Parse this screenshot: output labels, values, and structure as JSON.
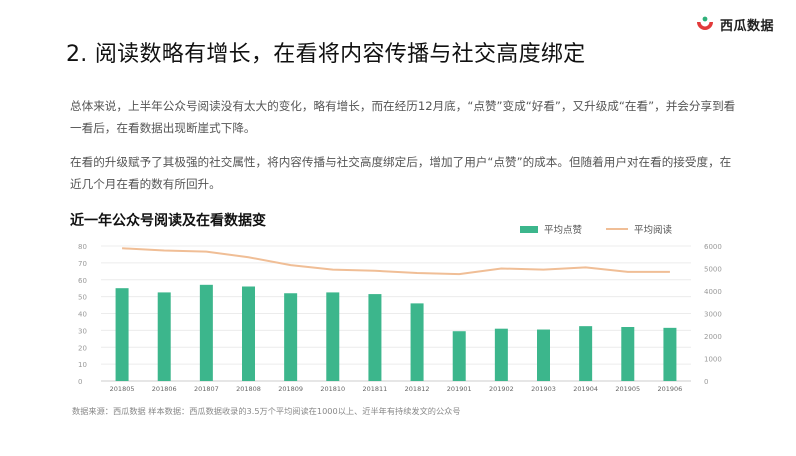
{
  "brand": {
    "name": "西瓜数据"
  },
  "title": "2. 阅读数略有增长，在看将内容传播与社交高度绑定",
  "paragraphs": [
    "总体来说，上半年公众号阅读没有太大的变化，略有增长，而在经历12月底，“点赞”变成“好看”，又升级成“在看”，并会分享到看一看后，在看数据出现断崖式下降。",
    "在看的升级赋予了其极强的社交属性，将内容传播与社交高度绑定后，增加了用户“点赞”的成本。但随着用户对在看的接受度，在近几个月在看的数有所回升。"
  ],
  "source": "数据来源：西瓜数据  样本数据：西瓜数据收录的3.5万个平均阅读在1000以上、近半年有持续发文的公众号",
  "colors": {
    "bar": "#3cb68c",
    "line": "#f0be96",
    "grid": "#ececec",
    "axis": "#999999"
  },
  "chart_data": {
    "type": "bar",
    "title": "近一年公众号阅读及在看数据变",
    "categories": [
      "201805",
      "201806",
      "201807",
      "201808",
      "201809",
      "201810",
      "201811",
      "201812",
      "201901",
      "201902",
      "201903",
      "201904",
      "201905",
      "201906"
    ],
    "series": [
      {
        "name": "平均点赞",
        "type": "bar",
        "axis": "left",
        "values": [
          55,
          52.5,
          57,
          56,
          52,
          52.5,
          51.5,
          46,
          29.5,
          31,
          30.5,
          32.5,
          32,
          31.5
        ]
      },
      {
        "name": "平均阅读",
        "type": "line",
        "axis": "right",
        "values": [
          5900,
          5800,
          5750,
          5500,
          5150,
          4950,
          4900,
          4800,
          4750,
          5000,
          4950,
          5050,
          4850,
          4850
        ]
      }
    ],
    "y_left": {
      "ylim": [
        0,
        80
      ],
      "ticks": [
        0,
        10,
        20,
        30,
        40,
        50,
        60,
        70,
        80
      ]
    },
    "y_right": {
      "ylim": [
        0,
        6000
      ],
      "ticks": [
        0,
        1000,
        2000,
        3000,
        4000,
        5000,
        6000
      ]
    },
    "legend_position": "top-right",
    "grid": true
  }
}
